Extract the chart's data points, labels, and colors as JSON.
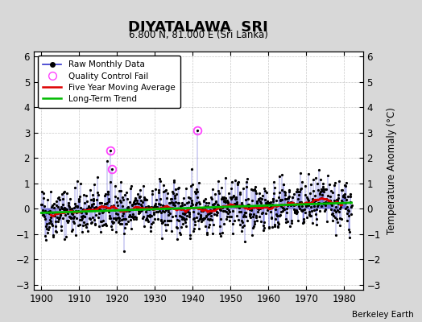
{
  "title": "DIYATALAWA  SRI",
  "subtitle": "6.800 N, 81.000 E (Sri Lanka)",
  "ylabel": "Temperature Anomaly (°C)",
  "credit": "Berkeley Earth",
  "xlim": [
    1898,
    1985
  ],
  "ylim": [
    -3.2,
    6.2
  ],
  "yticks": [
    -3,
    -2,
    -1,
    0,
    1,
    2,
    3,
    4,
    5,
    6
  ],
  "xticks": [
    1900,
    1910,
    1920,
    1930,
    1940,
    1950,
    1960,
    1970,
    1980
  ],
  "x_start": 1900,
  "x_end": 1982,
  "seed": 42,
  "raw_color": "#3333cc",
  "ma_color": "#dd0000",
  "trend_color": "#00bb00",
  "qc_color": "#ff44ff",
  "plot_bg": "#ffffff",
  "fig_bg": "#d8d8d8",
  "grid_color": "#bbbbbb"
}
